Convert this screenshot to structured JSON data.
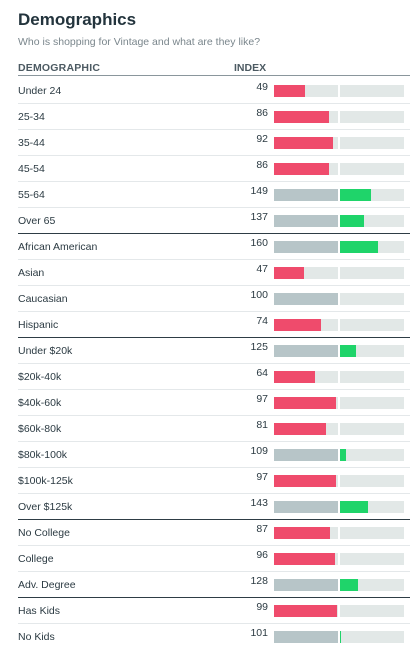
{
  "header": {
    "title": "Demographics",
    "subtitle": "Who is shopping for Vintage and what are they like?",
    "col_demographic": "DEMOGRAPHIC",
    "col_index": "INDEX"
  },
  "colors": {
    "below_baseline": "#ef4b6c",
    "baseline": "#b7c5c8",
    "above_baseline": "#1fd46a",
    "track": "#e2e8e7"
  },
  "groups": [
    {
      "rows": [
        {
          "label": "Under 24",
          "index": 49
        },
        {
          "label": "25-34",
          "index": 86
        },
        {
          "label": "35-44",
          "index": 92
        },
        {
          "label": "45-54",
          "index": 86
        },
        {
          "label": "55-64",
          "index": 149
        },
        {
          "label": "Over 65",
          "index": 137
        }
      ]
    },
    {
      "rows": [
        {
          "label": "African American",
          "index": 160
        },
        {
          "label": "Asian",
          "index": 47
        },
        {
          "label": "Caucasian",
          "index": 100
        },
        {
          "label": "Hispanic",
          "index": 74
        }
      ]
    },
    {
      "rows": [
        {
          "label": "Under $20k",
          "index": 125
        },
        {
          "label": "$20k-40k",
          "index": 64
        },
        {
          "label": "$40k-60k",
          "index": 97
        },
        {
          "label": "$60k-80k",
          "index": 81
        },
        {
          "label": "$80k-100k",
          "index": 109
        },
        {
          "label": "$100k-125k",
          "index": 97
        },
        {
          "label": "Over $125k",
          "index": 143
        }
      ]
    },
    {
      "rows": [
        {
          "label": "No College",
          "index": 87
        },
        {
          "label": "College",
          "index": 96
        },
        {
          "label": "Adv. Degree",
          "index": 128
        }
      ]
    },
    {
      "rows": [
        {
          "label": "Has Kids",
          "index": 99
        },
        {
          "label": "No Kids",
          "index": 101
        }
      ]
    }
  ]
}
